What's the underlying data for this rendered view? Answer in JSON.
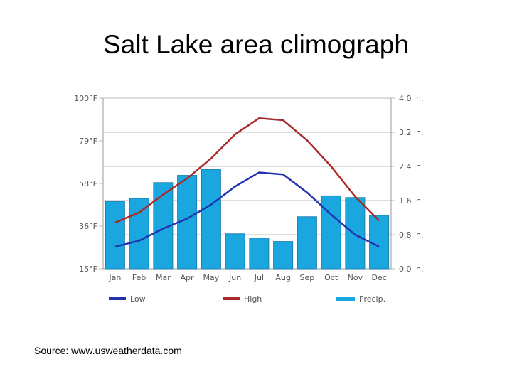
{
  "slide": {
    "title": "Salt Lake area climograph",
    "source": "Source: www.usweatherdata.com"
  },
  "colors": {
    "low": "#2233b0",
    "high": "#a82a2a",
    "precip": "#1aa7e0",
    "grid": "#bbbbbb"
  },
  "chart_data": {
    "type": "bar",
    "categories": [
      "Jan",
      "Feb",
      "Mar",
      "Apr",
      "May",
      "Jun",
      "Jul",
      "Aug",
      "Sep",
      "Oct",
      "Nov",
      "Dec"
    ],
    "series": [
      {
        "name": "Low",
        "type": "line",
        "axis": "left",
        "values": [
          26,
          29,
          35,
          40,
          47,
          56,
          63,
          62,
          53,
          42,
          32,
          26
        ]
      },
      {
        "name": "High",
        "type": "line",
        "axis": "left",
        "values": [
          38,
          43,
          52,
          60,
          70,
          82,
          90,
          89,
          79,
          66,
          51,
          39
        ]
      },
      {
        "name": "Precip.",
        "type": "bar",
        "axis": "right",
        "values": [
          1.58,
          1.65,
          2.02,
          2.19,
          2.33,
          0.82,
          0.72,
          0.64,
          1.22,
          1.71,
          1.67,
          1.25
        ]
      }
    ],
    "y_left": {
      "ticks": [
        "100°F",
        "79°F",
        "58°F",
        "36°F",
        "15°F"
      ],
      "ylim": [
        15,
        100
      ]
    },
    "y_right": {
      "ticks": [
        "4.0 in.",
        "3.2 in.",
        "2.4 in.",
        "1.6 in.",
        "0.8 in.",
        "0.0 in."
      ],
      "ylim": [
        0,
        4
      ]
    },
    "grid": true,
    "legend": [
      "Low",
      "High",
      "Precip."
    ],
    "legend_position": "bottom"
  }
}
